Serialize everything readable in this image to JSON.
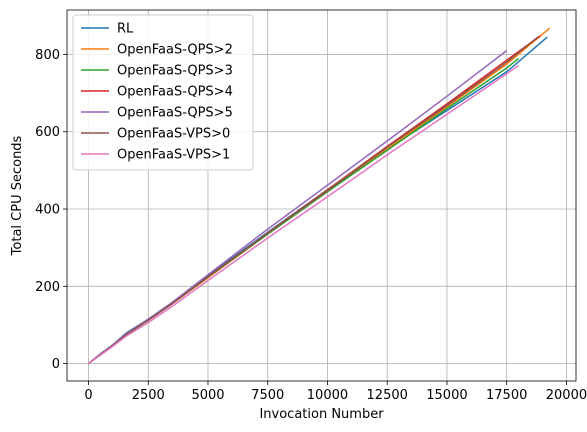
{
  "chart_data": {
    "type": "line",
    "title": "",
    "xlabel": "Invocation Number",
    "ylabel": "Total CPU Seconds",
    "xlim": [
      -900,
      20400
    ],
    "ylim": [
      -45,
      915
    ],
    "xticks": [
      0,
      2500,
      5000,
      7500,
      10000,
      12500,
      15000,
      17500,
      20000
    ],
    "yticks": [
      0,
      200,
      400,
      600,
      800
    ],
    "grid": true,
    "legend_position": "top-left",
    "series": [
      {
        "name": "RL",
        "color": "#1f77b4",
        "x": [
          0,
          500,
          1000,
          1600,
          2500,
          3500,
          5000,
          7500,
          10000,
          12500,
          15000,
          17500,
          19200
        ],
        "y": [
          0,
          25,
          48,
          80,
          115,
          158,
          228,
          340,
          450,
          555,
          655,
          755,
          845
        ]
      },
      {
        "name": "OpenFaaS-QPS>2",
        "color": "#ff7f0e",
        "x": [
          0,
          500,
          1000,
          1600,
          2500,
          3500,
          5000,
          7500,
          10000,
          12500,
          15000,
          17500,
          19300
        ],
        "y": [
          0,
          24,
          46,
          76,
          112,
          155,
          222,
          335,
          445,
          555,
          665,
          775,
          868
        ]
      },
      {
        "name": "OpenFaaS-QPS>3",
        "color": "#2ca02c",
        "x": [
          0,
          500,
          1000,
          1600,
          2500,
          3500,
          5000,
          7500,
          10000,
          12500,
          15000,
          17500,
          18000
        ],
        "y": [
          0,
          24,
          46,
          76,
          112,
          155,
          224,
          335,
          445,
          552,
          660,
          765,
          790
        ]
      },
      {
        "name": "OpenFaaS-QPS>4",
        "color": "#d62728",
        "x": [
          0,
          500,
          1000,
          1600,
          2500,
          3500,
          5000,
          7500,
          10000,
          12500,
          15000,
          17500,
          18900
        ],
        "y": [
          0,
          24,
          46,
          76,
          112,
          155,
          225,
          338,
          450,
          562,
          672,
          785,
          848
        ]
      },
      {
        "name": "OpenFaaS-QPS>5",
        "color": "#9467bd",
        "x": [
          0,
          500,
          1000,
          1600,
          2500,
          3500,
          5000,
          7500,
          10000,
          12500,
          15000,
          17500
        ],
        "y": [
          0,
          25,
          48,
          78,
          115,
          158,
          230,
          348,
          462,
          576,
          692,
          810
        ]
      },
      {
        "name": "OpenFaaS-VPS>0",
        "color": "#8c564b",
        "x": [
          0,
          500,
          1000,
          1600,
          2500,
          3500,
          5000,
          7500,
          10000,
          12500,
          15000,
          17500,
          18800
        ],
        "y": [
          0,
          24,
          46,
          76,
          112,
          155,
          225,
          338,
          448,
          560,
          668,
          780,
          845
        ]
      },
      {
        "name": "OpenFaaS-VPS>1",
        "color": "#e377c2",
        "x": [
          0,
          500,
          1000,
          1600,
          2500,
          3500,
          5000,
          7500,
          10000,
          12500,
          15000,
          17500,
          18000
        ],
        "y": [
          0,
          22,
          44,
          72,
          106,
          148,
          215,
          325,
          432,
          540,
          645,
          750,
          772
        ]
      }
    ]
  }
}
